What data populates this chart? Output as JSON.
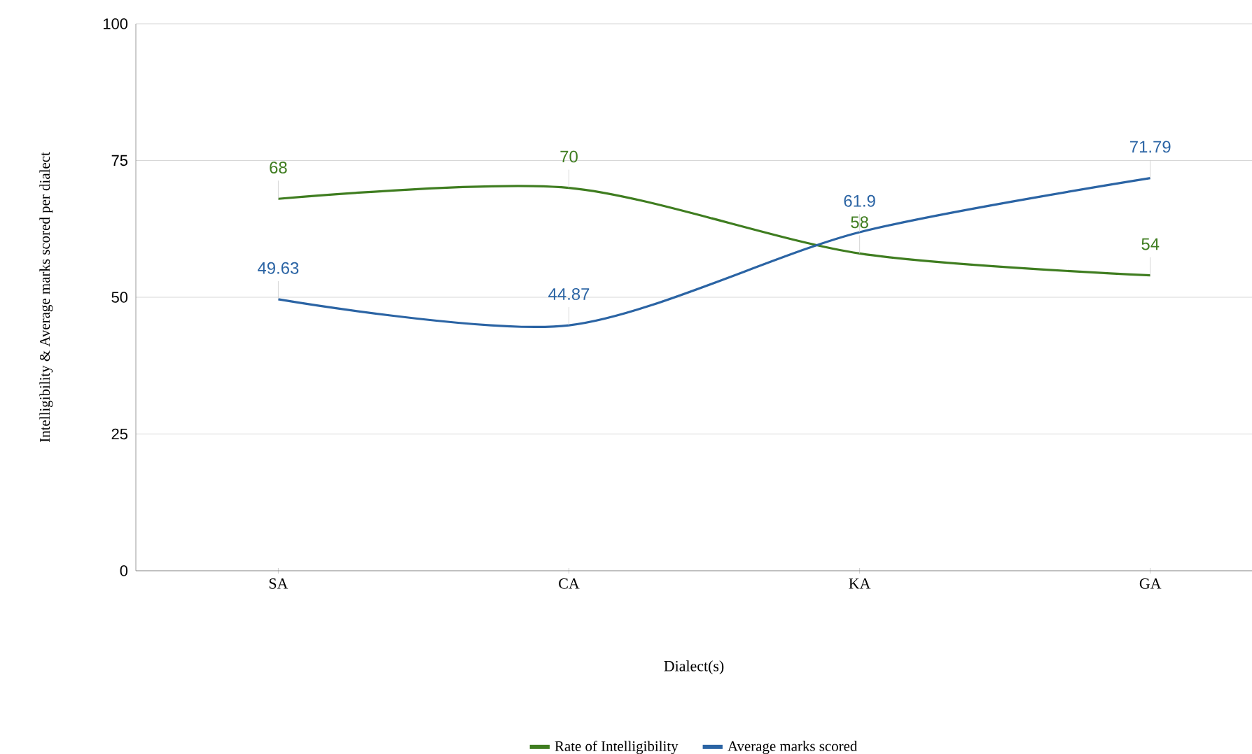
{
  "chart_data": {
    "type": "line",
    "xlabel": "Dialect(s)",
    "ylabel": "Intelligibility & Average marks scored per dialect",
    "categories": [
      "SA",
      "CA",
      "KA",
      "GA"
    ],
    "series": [
      {
        "name": "Rate of Intelligibility",
        "color": "#3f7d20",
        "values": [
          68,
          70,
          58,
          54
        ]
      },
      {
        "name": "Average marks scored",
        "color": "#2b64a4",
        "values": [
          49.63,
          44.87,
          61.9,
          71.79
        ]
      }
    ],
    "ylim": [
      0,
      100
    ],
    "yticks": [
      0,
      25,
      50,
      75,
      100
    ],
    "grid": "y",
    "legend": "bottom",
    "data_labels": true,
    "marker": "none",
    "line_style": "solid"
  }
}
